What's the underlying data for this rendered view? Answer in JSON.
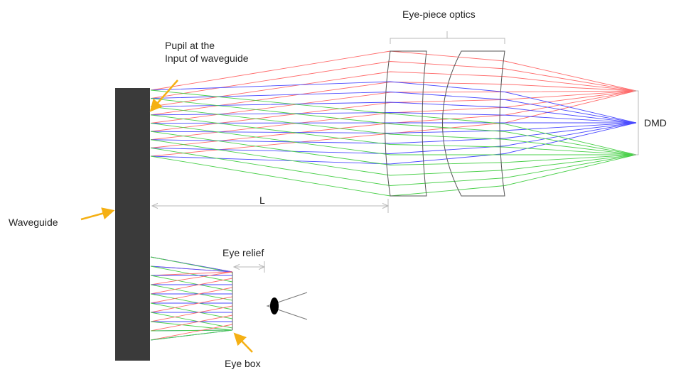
{
  "labels": {
    "eyepiece": "Eye-piece optics",
    "pupil_line1": "Pupil at the",
    "pupil_line2": "Input of waveguide",
    "dmd": "DMD",
    "waveguide": "Waveguide",
    "distance": "L",
    "eye_relief": "Eye relief",
    "eye_box": "Eye box"
  },
  "colors": {
    "waveguide": "#3a3a3a",
    "arrow": "#f5b014",
    "ray_red": "#ff6b6b",
    "ray_blue": "#4a4aff",
    "ray_green": "#4bd04b",
    "dimension": "#b9b9b9",
    "lens_outline": "#555555"
  },
  "icons": [
    "eye-icon"
  ]
}
